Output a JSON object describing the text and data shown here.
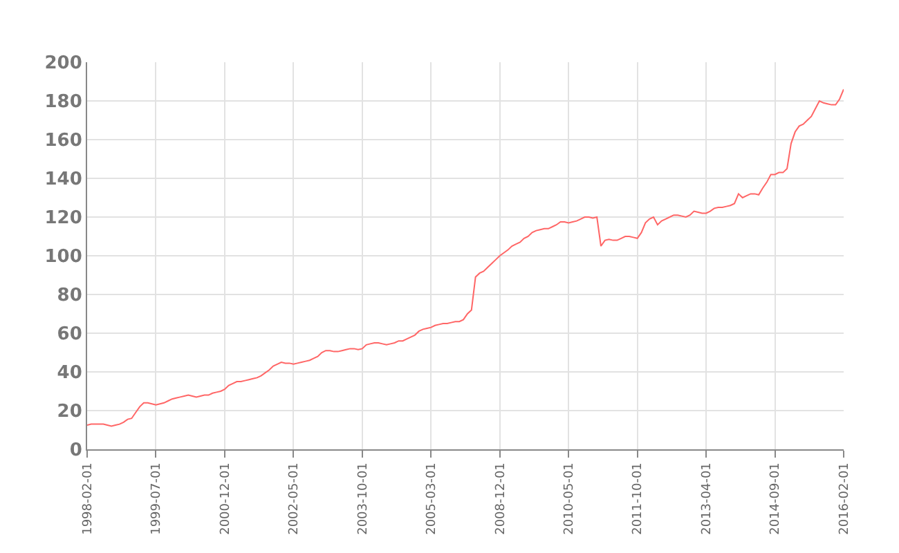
{
  "chart_data": {
    "type": "line",
    "categories": [
      "1998-02-01",
      null,
      null,
      null,
      null,
      null,
      null,
      null,
      null,
      null,
      null,
      null,
      null,
      null,
      null,
      null,
      null,
      "1999-07-01",
      null,
      null,
      null,
      null,
      null,
      null,
      null,
      null,
      null,
      null,
      null,
      null,
      null,
      null,
      null,
      null,
      "2000-12-01",
      null,
      null,
      null,
      null,
      null,
      null,
      null,
      null,
      null,
      null,
      null,
      null,
      null,
      null,
      null,
      null,
      "2002-05-01",
      null,
      null,
      null,
      null,
      null,
      null,
      null,
      null,
      null,
      null,
      null,
      null,
      null,
      null,
      null,
      null,
      "2003-10-01",
      null,
      null,
      null,
      null,
      null,
      null,
      null,
      null,
      null,
      null,
      null,
      null,
      null,
      null,
      null,
      null,
      "2005-03-01",
      null,
      null,
      null,
      null,
      null,
      null,
      null,
      null,
      null,
      null,
      null,
      null,
      null,
      null,
      null,
      null,
      "2008-12-01",
      null,
      null,
      null,
      null,
      null,
      null,
      null,
      null,
      null,
      null,
      null,
      null,
      null,
      null,
      null,
      null,
      "2010-05-01",
      null,
      null,
      null,
      null,
      null,
      null,
      null,
      null,
      null,
      null,
      null,
      null,
      null,
      null,
      null,
      null,
      "2011-10-01",
      null,
      null,
      null,
      null,
      null,
      null,
      null,
      null,
      null,
      null,
      null,
      null,
      null,
      null,
      null,
      null,
      "2013-04-01",
      null,
      null,
      null,
      null,
      null,
      null,
      null,
      null,
      null,
      null,
      null,
      null,
      null,
      null,
      null,
      null,
      "2014-09-01",
      null,
      null,
      null,
      null,
      null,
      null,
      null,
      null,
      null,
      null,
      null,
      null,
      null,
      null,
      null,
      null,
      "2016-02-01"
    ],
    "series": [
      {
        "color": "#ff6666",
        "values": [
          12.5,
          13,
          13,
          13,
          13,
          12.5,
          12,
          12.5,
          13,
          14,
          15.5,
          16,
          19,
          22,
          24,
          24,
          23.5,
          23,
          23.5,
          24,
          25,
          26,
          26.5,
          27,
          27.5,
          28,
          27.5,
          27,
          27.5,
          28,
          28,
          29,
          29.5,
          30,
          31,
          33,
          34,
          35,
          35,
          35.5,
          36,
          36.5,
          37,
          38,
          39.5,
          41,
          43,
          44,
          45,
          44.5,
          44.5,
          44,
          44.5,
          45,
          45.5,
          46,
          47,
          48,
          50,
          51,
          51,
          50.5,
          50.5,
          51,
          51.5,
          52,
          52,
          51.5,
          52,
          54,
          54.5,
          55,
          55,
          54.5,
          54,
          54.5,
          55,
          56,
          56,
          57,
          58,
          59,
          61,
          62,
          62.5,
          63,
          64,
          64.5,
          65,
          65,
          65.5,
          66,
          66,
          67,
          70,
          72,
          89,
          91,
          92,
          94,
          96,
          98,
          100,
          101.5,
          103,
          105,
          106,
          107,
          109,
          110,
          112,
          113,
          113.5,
          114,
          114,
          115,
          116,
          117.5,
          117.5,
          117,
          117.5,
          118,
          119,
          120,
          120,
          119.5,
          120,
          105,
          108,
          108.5,
          108,
          108,
          109,
          110,
          110,
          109.5,
          109,
          112,
          117,
          119,
          120,
          116,
          118,
          119,
          120,
          121,
          121,
          120.5,
          120,
          121,
          123,
          122.5,
          122,
          122,
          123,
          124.5,
          125,
          125,
          125.5,
          126,
          127,
          132,
          130,
          131,
          132,
          132,
          131.5,
          135,
          138,
          142,
          142,
          143,
          143,
          145,
          158,
          164,
          167,
          168,
          170,
          172,
          176,
          180,
          179,
          178.5,
          178,
          178,
          181,
          186
        ]
      }
    ],
    "ylim": [
      0,
      200
    ],
    "yticks": [
      0,
      20,
      40,
      60,
      80,
      100,
      120,
      140,
      160,
      180,
      200
    ],
    "grid": true,
    "marker": "none",
    "line_style": "solid"
  }
}
